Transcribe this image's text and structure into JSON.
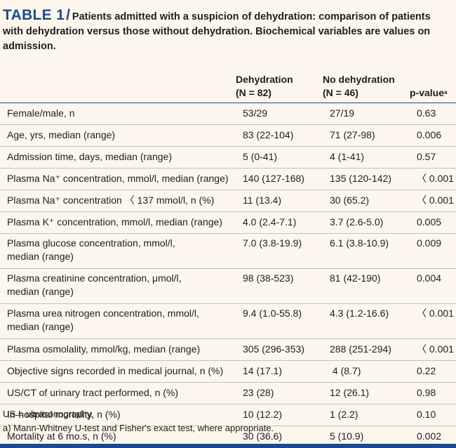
{
  "caption": {
    "lead": "TABLE 1",
    "slash": "/",
    "text": "Patients admitted with a suspicion of dehydration: comparison of patients with dehydration versus those without dehydration. Biochemical variables are values on admission."
  },
  "header": {
    "col1_line1": "Dehydration",
    "col1_line2": "(N = 82)",
    "col2_line1": "No dehydration",
    "col2_line2": "(N = 46)",
    "col3": "p-value",
    "col3_sup": "a"
  },
  "rows": [
    {
      "label": "Female/male, n",
      "dehydration": "53/29",
      "no_dehydration": "27/19",
      "p": "0.63"
    },
    {
      "label": "Age, yrs, median (range)",
      "dehydration": "83 (22-104)",
      "no_dehydration": "71 (27-98)",
      "p": "0.006"
    },
    {
      "label": "Admission time, days, median (range)",
      "dehydration": "5 (0-41)",
      "no_dehydration": "4 (1-41)",
      "p": "0.57"
    },
    {
      "label": "Plasma Na⁺ concentration, mmol/l, median (range)",
      "dehydration": "140 (127-168)",
      "no_dehydration": "135 (120-142)",
      "p": "〈 0.001"
    },
    {
      "label": "Plasma Na⁺ concentration 〈 137 mmol/l, n (%)",
      "dehydration": "11 (13.4)",
      "no_dehydration": "30 (65.2)",
      "p": "〈 0.001"
    },
    {
      "label": "Plasma K⁺ concentration, mmol/l, median (range)",
      "dehydration": "4.0 (2.4-7.1)",
      "no_dehydration": "3.7 (2.6-5.0)",
      "p": "0.005"
    },
    {
      "label_line1": "Plasma glucose concentration, mmol/l,",
      "label_line2": "median (range)",
      "dehydration": "7.0 (3.8-19.9)",
      "no_dehydration": "6.1 (3.8-10.9)",
      "p": "0.009"
    },
    {
      "label_line1": "Plasma creatinine concentration, μmol/l,",
      "label_line2": "median (range)",
      "dehydration": "98 (38-523)",
      "no_dehydration": "81 (42-190)",
      "p": "0.004"
    },
    {
      "label_line1": "Plasma urea nitrogen concentration, mmol/l,",
      "label_line2": "median (range)",
      "dehydration": "9.4 (1.0-55.8)",
      "no_dehydration": "4.3 (1.2-16.6)",
      "p": "〈 0.001"
    },
    {
      "label": "Plasma osmolality, mmol/kg, median (range)",
      "dehydration": "305 (296-353)",
      "no_dehydration": "288 (251-294)",
      "p": "〈 0.001"
    },
    {
      "label": "Objective signs recorded in medical journal, n (%)",
      "dehydration": "14 (17.1)",
      "no_dehydration": " 4 (8.7)",
      "p": "0.22"
    },
    {
      "label": "US/CT of urinary tract performed, n (%)",
      "dehydration": "23 (28)",
      "no_dehydration": "12 (26.1)",
      "p": "0.98"
    },
    {
      "label": "In-hospital mortality, n (%)",
      "dehydration": "10 (12.2)",
      "no_dehydration": "1 (2.2)",
      "p": "0.10"
    },
    {
      "label": "Mortality at 6 mo.s, n (%)",
      "dehydration": "30 (36.6)",
      "no_dehydration": "5 (10.9)",
      "p": "0.002"
    }
  ],
  "footnotes": {
    "abbrev": "US = ultrasonography.",
    "a": "a) Mann-Whitney U-test and Fisher's exact test, where appropriate."
  }
}
